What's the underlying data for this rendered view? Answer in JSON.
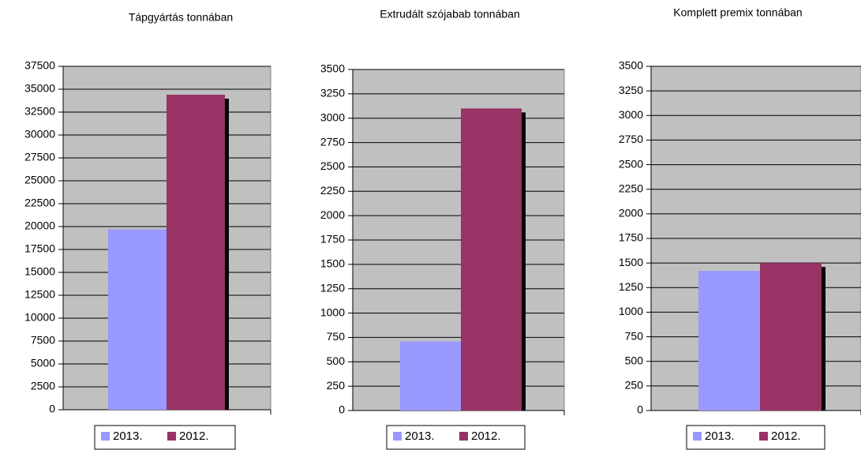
{
  "chart_data": [
    {
      "type": "bar",
      "title": "Tápgyártás tonnában",
      "categories": [
        null
      ],
      "series": [
        {
          "name": "2013.",
          "color": "#9999ff",
          "values": [
            19700
          ]
        },
        {
          "name": "2012.",
          "color": "#993366",
          "values": [
            34400
          ]
        }
      ],
      "ylim": [
        0,
        37500
      ],
      "yticks": [
        0,
        2500,
        5000,
        7500,
        10000,
        12500,
        15000,
        17500,
        20000,
        22500,
        25000,
        27500,
        30000,
        32500,
        35000,
        37500
      ],
      "grid": true
    },
    {
      "type": "bar",
      "title": "Extrudált szójabab tonnában",
      "categories": [
        null
      ],
      "series": [
        {
          "name": "2013.",
          "color": "#9999ff",
          "values": [
            710
          ]
        },
        {
          "name": "2012.",
          "color": "#993366",
          "values": [
            3100
          ]
        }
      ],
      "ylim": [
        0,
        3500
      ],
      "yticks": [
        0,
        250,
        500,
        750,
        1000,
        1250,
        1500,
        1750,
        2000,
        2250,
        2500,
        2750,
        3000,
        3250,
        3500
      ],
      "grid": true
    },
    {
      "type": "bar",
      "title": "Komplett premix tonnában",
      "categories": [
        null
      ],
      "series": [
        {
          "name": "2013.",
          "color": "#9999ff",
          "values": [
            1420
          ]
        },
        {
          "name": "2012.",
          "color": "#993366",
          "values": [
            1500
          ]
        }
      ],
      "ylim": [
        0,
        3500
      ],
      "yticks": [
        0,
        250,
        500,
        750,
        1000,
        1250,
        1500,
        1750,
        2000,
        2250,
        2500,
        2750,
        3000,
        3250,
        3500
      ],
      "grid": true
    }
  ]
}
